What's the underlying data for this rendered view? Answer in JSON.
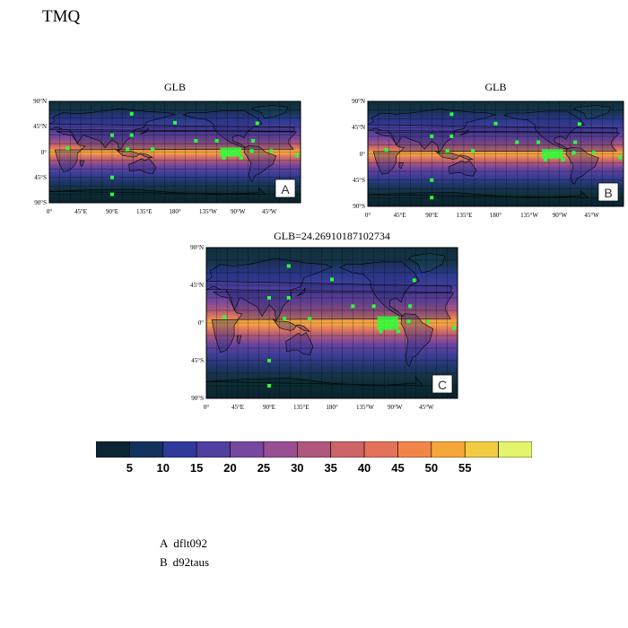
{
  "title": "TMQ",
  "panels": [
    {
      "id": "A",
      "title": "GLB",
      "letter": "A"
    },
    {
      "id": "B",
      "title": "GLB",
      "letter": "B"
    },
    {
      "id": "C",
      "title": "GLB=24.26910187102734",
      "letter": "C"
    }
  ],
  "lat_ticks": [
    "90°N",
    "45°N",
    "0°",
    "45°S",
    "90°S"
  ],
  "lon_ticks": [
    "0°",
    "45°E",
    "90°E",
    "135°E",
    "180°",
    "135°W",
    "90°W",
    "45°W"
  ],
  "colorbar": {
    "colors": [
      "#0b2633",
      "#13335f",
      "#303a9a",
      "#52409e",
      "#77489f",
      "#984f94",
      "#b0577e",
      "#cc6468",
      "#e4725a",
      "#f28649",
      "#f6a53b",
      "#f2cb41",
      "#e4f46c"
    ],
    "labels": [
      "5",
      "10",
      "15",
      "20",
      "25",
      "30",
      "35",
      "40",
      "45",
      "50",
      "55"
    ]
  },
  "legend": [
    {
      "key": "A",
      "name": "dflt092"
    },
    {
      "key": "B",
      "name": "d92taus"
    }
  ],
  "marker_color": "#2bff3c"
}
